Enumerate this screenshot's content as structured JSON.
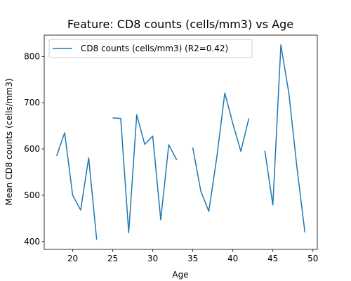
{
  "chart_data": {
    "type": "line",
    "title": "Feature: CD8 counts (cells/mm3) vs Age",
    "xlabel": "Age",
    "ylabel": "Mean CD8 counts (cells/mm3)",
    "xlim": [
      16.45,
      50.55
    ],
    "ylim": [
      383,
      846
    ],
    "xticks": [
      20,
      25,
      30,
      35,
      40,
      45,
      50
    ],
    "yticks": [
      400,
      500,
      600,
      700,
      800
    ],
    "grid": false,
    "legend_position": "top-left",
    "series": [
      {
        "name": "CD8 counts (cells/mm3) (R2=0.42)",
        "color": "#1f77b4",
        "x": [
          18,
          19,
          20,
          21,
          22,
          23,
          24,
          25,
          26,
          27,
          28,
          29,
          30,
          31,
          32,
          33,
          34,
          35,
          36,
          37,
          38,
          39,
          40,
          41,
          42,
          43,
          44,
          45,
          46,
          47,
          48,
          49
        ],
        "y": [
          585,
          635,
          500,
          468,
          581,
          404,
          null,
          667,
          666,
          419,
          674,
          610,
          628,
          447,
          609,
          576,
          null,
          603,
          509,
          465,
          582,
          721,
          655,
          595,
          666,
          null,
          596,
          479,
          825,
          720,
          561,
          420
        ]
      }
    ]
  }
}
